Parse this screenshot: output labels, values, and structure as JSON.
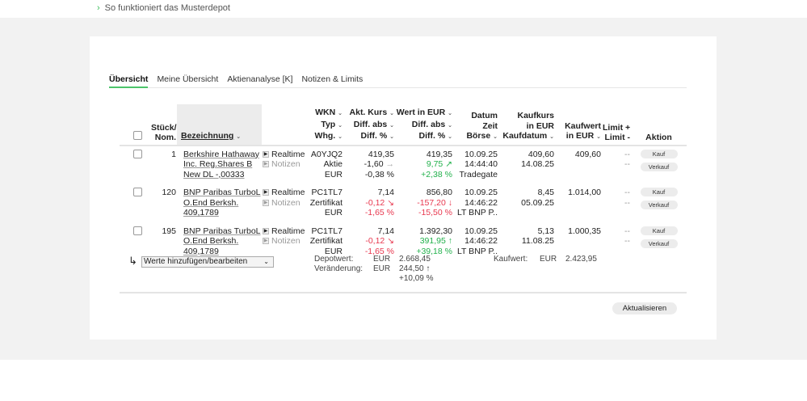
{
  "top_link": "So funktioniert das Musterdepot",
  "tabs": [
    "Übersicht",
    "Meine Übersicht",
    "Aktienanalyse [K]",
    "Notizen & Limits"
  ],
  "headers": {
    "stueck": [
      "Stück/",
      "Nom."
    ],
    "bez": "Bezeichnung",
    "wkn": [
      "WKN",
      "Typ",
      "Whg."
    ],
    "akt": [
      "Akt. Kurs",
      "Diff. abs",
      "Diff. %"
    ],
    "wert": [
      "Wert in EUR",
      "Diff. abs",
      "Diff. %"
    ],
    "datum": [
      "Datum",
      "Zeit",
      "Börse"
    ],
    "kaufkurs": [
      "Kaufkurs",
      "in EUR",
      "Kaufdatum"
    ],
    "kaufwert": [
      "Kaufwert",
      "in EUR"
    ],
    "limit": [
      "Limit +",
      "Limit -"
    ],
    "aktion": "Aktion"
  },
  "links": {
    "realtime": "Realtime",
    "notizen": "Notizen"
  },
  "buttons": {
    "kauf": "Kauf",
    "verkauf": "Verkauf",
    "update": "Aktualisieren"
  },
  "rows": [
    {
      "stueck": "1",
      "name": "Berkshire Hathaway Inc. Reg.Shares B New DL -,00333",
      "wkn": "A0YJQ2",
      "typ": "Aktie",
      "whg": "EUR",
      "kurs": "419,35",
      "diff_abs": "-1,60",
      "diff_pct": "-0,38 %",
      "kurs_trend": "flat",
      "wert": "419,35",
      "wert_diff": "9,75",
      "wert_pct": "+2,38 %",
      "wert_trend": "up-right",
      "datum": "10.09.25",
      "zeit": "14:44:40",
      "boerse": "Tradegate",
      "kaufkurs": "409,60",
      "kaufdatum": "14.08.25",
      "kaufwert": "409,60",
      "limit_plus": "--",
      "limit_minus": "--"
    },
    {
      "stueck": "120",
      "name": "BNP Paribas TurboL O.End Berksh. 409,1789",
      "wkn": "PC1TL7",
      "typ": "Zertifikat",
      "whg": "EUR",
      "kurs": "7,14",
      "diff_abs": "-0,12",
      "diff_pct": "-1,65 %",
      "kurs_trend": "down-right",
      "wert": "856,80",
      "wert_diff": "-157,20",
      "wert_pct": "-15,50 %",
      "wert_trend": "down",
      "datum": "10.09.25",
      "zeit": "14:46:22",
      "boerse": "LT BNP P..",
      "kaufkurs": "8,45",
      "kaufdatum": "05.09.25",
      "kaufwert": "1.014,00",
      "limit_plus": "--",
      "limit_minus": "--"
    },
    {
      "stueck": "195",
      "name": "BNP Paribas TurboL O.End Berksh. 409,1789",
      "wkn": "PC1TL7",
      "typ": "Zertifikat",
      "whg": "EUR",
      "kurs": "7,14",
      "diff_abs": "-0,12",
      "diff_pct": "-1,65 %",
      "kurs_trend": "down-right",
      "wert": "1.392,30",
      "wert_diff": "391,95",
      "wert_pct": "+39,18 %",
      "wert_trend": "up",
      "datum": "10.09.25",
      "zeit": "14:46:22",
      "boerse": "LT BNP P..",
      "kaufkurs": "5,13",
      "kaufdatum": "11.08.25",
      "kaufwert": "1.000,35",
      "limit_plus": "--",
      "limit_minus": "--"
    }
  ],
  "footer": {
    "select": "Werte hinzufügen/bearbeiten",
    "depotwert_label": "Depotwert:",
    "veraenderung_label": "Veränderung:",
    "currency": "EUR",
    "depotwert": "2.668,45",
    "veraenderung": "244,50",
    "veraenderung_pct": "+10,09 %",
    "kaufwert_label": "Kaufwert:",
    "kaufwert": "2.423,95"
  },
  "colors": {
    "accent": "#4cc56a",
    "positive": "#22b14c",
    "negative": "#e8384f"
  }
}
